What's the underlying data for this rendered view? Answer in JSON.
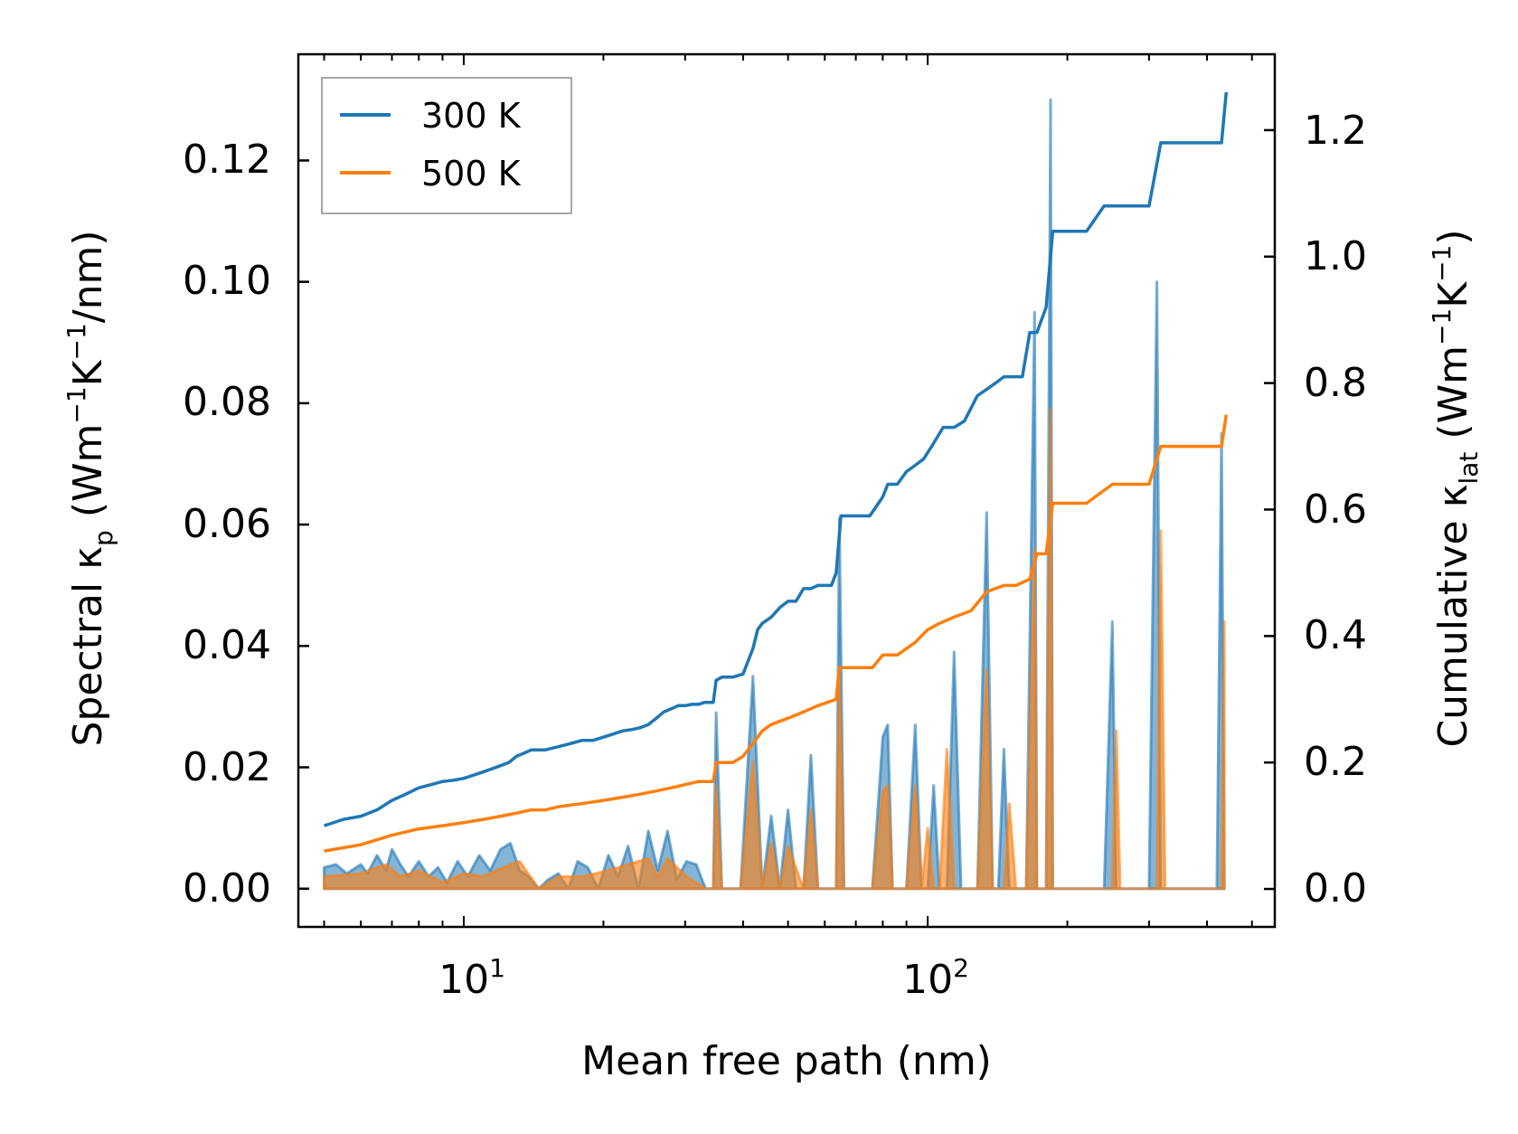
{
  "chart_data": {
    "type": "line",
    "title": "",
    "xlabel": "Mean free path (nm)",
    "x_scale": "log",
    "xlim": [
      4.4,
      560
    ],
    "x_ticks": [
      {
        "value": 10,
        "base": "10",
        "exp": "1"
      },
      {
        "value": 100,
        "base": "10",
        "exp": "2"
      }
    ],
    "ylabel_left": {
      "prefix": "Spectral κ",
      "sub": "p",
      "units_open": " (Wm",
      "exp1": "−1",
      "mid": "K",
      "exp2": "−1",
      "units_close": "/nm)"
    },
    "ylim_left": [
      -0.0063,
      0.1375
    ],
    "yticks_left": [
      "0.00",
      "0.02",
      "0.04",
      "0.06",
      "0.08",
      "0.10",
      "0.12"
    ],
    "ylabel_right": {
      "prefix": "Cumulative κ",
      "sub": "lat",
      "units_open": " (Wm",
      "exp1": "−1",
      "mid": "K",
      "exp2": "−1",
      "units_close": ")"
    },
    "ylim_right": [
      -0.06,
      1.32
    ],
    "yticks_right": [
      "0.0",
      "0.2",
      "0.4",
      "0.6",
      "0.8",
      "1.0",
      "1.2"
    ],
    "legend": {
      "position": "top-left",
      "entries": [
        {
          "label": "300 K",
          "color": "#1f77b4"
        },
        {
          "label": "500 K",
          "color": "#ff7f0e"
        }
      ]
    },
    "spectral_series": [
      {
        "name": "300 K",
        "color": "#1f77b4",
        "axis": "left",
        "x": [
          5.0,
          5.3,
          5.6,
          6.0,
          6.2,
          6.5,
          6.8,
          7.0,
          7.3,
          7.6,
          8.0,
          8.4,
          8.8,
          9.2,
          9.7,
          10.2,
          10.8,
          11.4,
          12.0,
          12.6,
          13.2,
          13.8,
          14.5,
          15.2,
          16.0,
          16.8,
          17.6,
          18.5,
          19.5,
          20.5,
          21.5,
          22.6,
          23.8,
          25.0,
          26.2,
          27.5,
          28.8,
          30.2,
          31.7,
          33.2,
          34.5,
          35.0,
          36.0,
          37.5,
          39.5,
          42.0,
          44.0,
          46.0,
          48.0,
          50.0,
          52.0,
          54.0,
          56.0,
          58.0,
          60.0,
          62.0,
          63.5,
          64.5,
          66.0,
          70.0,
          76.0,
          80.0,
          82.0,
          84.0,
          86.0,
          90.0,
          94.0,
          97.0,
          100.0,
          103.0,
          106.0,
          110.0,
          114.0,
          118.0,
          122.0,
          128.0,
          134.0,
          138.0,
          142.0,
          146.0,
          150.0,
          155.0,
          163.0,
          170.0,
          172.0,
          176.0,
          180.0,
          184.0,
          186.0,
          190.0,
          240.0,
          250.0,
          255.0,
          260.0,
          300.0,
          312.0,
          318.0,
          325.0,
          420.0,
          430.0,
          436.0
        ],
        "y": [
          0.0035,
          0.004,
          0.0025,
          0.004,
          0.0025,
          0.0055,
          0.003,
          0.0065,
          0.004,
          0.002,
          0.0045,
          0.002,
          0.0035,
          0.001,
          0.0045,
          0.002,
          0.0055,
          0.003,
          0.0065,
          0.0075,
          0.003,
          0.002,
          0.0,
          0.0015,
          0.0025,
          0.0,
          0.0045,
          0.0035,
          0.0,
          0.0055,
          0.002,
          0.007,
          0.0,
          0.0095,
          0.003,
          0.0095,
          0.0015,
          0.0045,
          0.004,
          0.0,
          0.0,
          0.029,
          0.0,
          0.0,
          0.0,
          0.035,
          0.0,
          0.012,
          0.0,
          0.013,
          0.0,
          0.0,
          0.022,
          0.0,
          0.0,
          0.0,
          0.0,
          0.061,
          0.0,
          0.0,
          0.0,
          0.025,
          0.027,
          0.0,
          0.0,
          0.0,
          0.027,
          0.0,
          0.0,
          0.017,
          0.0,
          0.0,
          0.039,
          0.0,
          0.0,
          0.0,
          0.062,
          0.0,
          0.0,
          0.023,
          0.0,
          0.0,
          0.0,
          0.095,
          0.0,
          0.0,
          0.0,
          0.13,
          0.0,
          0.0,
          0.0,
          0.044,
          0.0,
          0.0,
          0.0,
          0.1,
          0.0,
          0.0,
          0.0,
          0.075,
          0.0
        ]
      },
      {
        "name": "500 K",
        "color": "#ff7f0e",
        "axis": "left",
        "x": [
          5.0,
          6.0,
          6.8,
          7.3,
          8.0,
          9.0,
          10.0,
          11.0,
          12.6,
          13.2,
          14.5,
          16.0,
          18.0,
          20.5,
          22.6,
          25.0,
          26.2,
          27.5,
          30.2,
          33.2,
          34.5,
          35.0,
          36.0,
          39.5,
          42.0,
          44.0,
          46.0,
          48.0,
          50.0,
          54.0,
          56.0,
          58.0,
          62.0,
          63.5,
          64.5,
          66.0,
          76.0,
          80.0,
          82.0,
          84.0,
          90.0,
          94.0,
          97.0,
          100.0,
          103.0,
          106.0,
          110.0,
          114.0,
          118.0,
          128.0,
          134.0,
          138.0,
          146.0,
          150.0,
          155.0,
          163.0,
          170.0,
          172.0,
          176.0,
          180.0,
          184.0,
          186.0,
          190.0,
          250.0,
          255.0,
          260.0,
          312.0,
          318.0,
          325.0,
          430.0,
          436.0
        ],
        "y": [
          0.002,
          0.0025,
          0.004,
          0.002,
          0.003,
          0.001,
          0.0025,
          0.002,
          0.004,
          0.0045,
          0.0,
          0.002,
          0.002,
          0.003,
          0.004,
          0.005,
          0.002,
          0.005,
          0.002,
          0.0,
          0.0,
          0.017,
          0.0,
          0.0,
          0.021,
          0.0,
          0.0075,
          0.0,
          0.007,
          0.0,
          0.013,
          0.0,
          0.0,
          0.0,
          0.036,
          0.0,
          0.0,
          0.016,
          0.017,
          0.0,
          0.0,
          0.017,
          0.0,
          0.01,
          0.0,
          0.0,
          0.023,
          0.0,
          0.0,
          0.0,
          0.036,
          0.0,
          0.0,
          0.014,
          0.0,
          0.0,
          0.056,
          0.0,
          0.0,
          0.0,
          0.079,
          0.0,
          0.0,
          0.0,
          0.026,
          0.0,
          0.0,
          0.059,
          0.0,
          0.0,
          0.044
        ]
      }
    ],
    "cumulative_series": [
      {
        "name": "300 K",
        "color": "#1f77b4",
        "axis": "right",
        "x": [
          5.0,
          5.5,
          6.0,
          6.5,
          7.0,
          7.5,
          8.0,
          8.5,
          9.0,
          9.5,
          10.0,
          10.5,
          11.0,
          11.5,
          12.0,
          12.5,
          13.0,
          13.5,
          14.0,
          15.0,
          16.0,
          17.0,
          18.0,
          19.0,
          20.0,
          21.0,
          22.0,
          23.0,
          24.0,
          25.0,
          26.0,
          27.0,
          28.0,
          29.0,
          30.0,
          31.0,
          32.0,
          33.0,
          34.5,
          35.0,
          36.0,
          38.0,
          40.0,
          42.0,
          43.0,
          44.0,
          46.0,
          48.0,
          50.0,
          52.0,
          54.0,
          56.0,
          58.0,
          60.0,
          62.0,
          63.5,
          65.0,
          70.0,
          75.0,
          80.0,
          82.0,
          86.0,
          90.0,
          94.0,
          98.0,
          102.0,
          108.0,
          114.0,
          120.0,
          128.0,
          134.0,
          140.0,
          146.0,
          160.0,
          166.0,
          172.0,
          180.0,
          186.0,
          190.0,
          220.0,
          240.0,
          256.0,
          270.0,
          300.0,
          318.0,
          330.0,
          400.0,
          430.0,
          440.0
        ],
        "y": [
          0.1,
          0.11,
          0.115,
          0.125,
          0.14,
          0.15,
          0.16,
          0.165,
          0.17,
          0.172,
          0.175,
          0.18,
          0.185,
          0.19,
          0.195,
          0.2,
          0.21,
          0.215,
          0.22,
          0.22,
          0.225,
          0.23,
          0.235,
          0.235,
          0.24,
          0.245,
          0.25,
          0.252,
          0.255,
          0.26,
          0.27,
          0.28,
          0.285,
          0.29,
          0.29,
          0.292,
          0.292,
          0.295,
          0.295,
          0.33,
          0.335,
          0.335,
          0.34,
          0.38,
          0.41,
          0.42,
          0.43,
          0.445,
          0.455,
          0.455,
          0.475,
          0.475,
          0.48,
          0.48,
          0.48,
          0.5,
          0.59,
          0.59,
          0.59,
          0.62,
          0.64,
          0.64,
          0.66,
          0.67,
          0.68,
          0.7,
          0.73,
          0.73,
          0.74,
          0.78,
          0.79,
          0.8,
          0.81,
          0.81,
          0.88,
          0.88,
          0.92,
          1.04,
          1.04,
          1.04,
          1.08,
          1.08,
          1.08,
          1.08,
          1.18,
          1.18,
          1.18,
          1.18,
          1.26
        ]
      },
      {
        "name": "500 K",
        "color": "#ff7f0e",
        "axis": "right",
        "x": [
          5.0,
          6.0,
          7.0,
          8.0,
          9.0,
          10.0,
          11.0,
          12.0,
          13.0,
          14.0,
          15.0,
          16.0,
          18.0,
          20.0,
          22.0,
          24.0,
          26.0,
          28.0,
          30.0,
          32.0,
          34.5,
          35.0,
          38.0,
          40.0,
          42.0,
          44.0,
          46.0,
          50.0,
          54.0,
          58.0,
          63.5,
          64.5,
          70.0,
          76.0,
          80.0,
          86.0,
          94.0,
          100.0,
          106.0,
          114.0,
          124.0,
          134.0,
          146.0,
          155.0,
          166.0,
          172.0,
          180.0,
          186.0,
          220.0,
          250.0,
          260.0,
          300.0,
          318.0,
          400.0,
          430.0,
          440.0
        ],
        "y": [
          0.06,
          0.07,
          0.085,
          0.095,
          0.1,
          0.105,
          0.11,
          0.115,
          0.12,
          0.125,
          0.125,
          0.13,
          0.135,
          0.14,
          0.145,
          0.15,
          0.155,
          0.16,
          0.165,
          0.17,
          0.17,
          0.2,
          0.2,
          0.21,
          0.23,
          0.25,
          0.26,
          0.27,
          0.28,
          0.29,
          0.3,
          0.35,
          0.35,
          0.35,
          0.37,
          0.37,
          0.39,
          0.41,
          0.42,
          0.43,
          0.44,
          0.47,
          0.48,
          0.48,
          0.49,
          0.53,
          0.53,
          0.61,
          0.61,
          0.64,
          0.64,
          0.64,
          0.7,
          0.7,
          0.7,
          0.75
        ]
      }
    ]
  }
}
